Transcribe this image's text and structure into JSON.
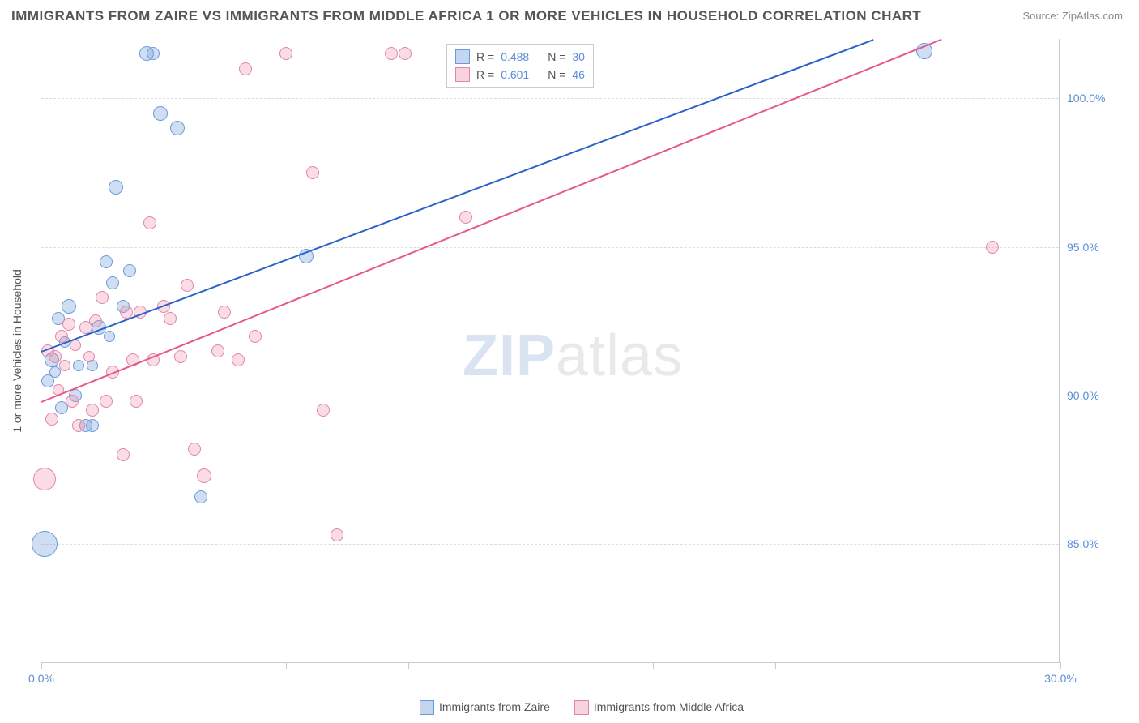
{
  "title": "IMMIGRANTS FROM ZAIRE VS IMMIGRANTS FROM MIDDLE AFRICA 1 OR MORE VEHICLES IN HOUSEHOLD CORRELATION CHART",
  "source": "Source: ZipAtlas.com",
  "ylabel": "1 or more Vehicles in Household",
  "watermark_zip": "ZIP",
  "watermark_atlas": "atlas",
  "chart": {
    "type": "scatter",
    "background_color": "#ffffff",
    "grid_color": "#dddddd",
    "axis_color": "#cccccc",
    "label_color": "#555555",
    "tick_color_x": "#5b8dd6",
    "tick_color_y": "#5b8dd6",
    "xlim": [
      0,
      30
    ],
    "ylim": [
      81,
      102
    ],
    "xticks": [
      0,
      3.6,
      7.2,
      10.8,
      14.4,
      18,
      21.6,
      25.2,
      30
    ],
    "xtick_labels": {
      "0": "0.0%",
      "30": "30.0%"
    },
    "yticks": [
      85,
      90,
      95,
      100
    ],
    "ytick_labels": {
      "85": "85.0%",
      "90": "90.0%",
      "95": "95.0%",
      "100": "100.0%"
    },
    "label_fontsize": 14,
    "title_fontsize": 17
  },
  "series": [
    {
      "name": "Immigrants from Zaire",
      "fill_color": "rgba(120,160,220,0.35)",
      "stroke_color": "#6a9bd8",
      "line_color": "#2b62c8",
      "swatch_fill": "#c3d5ef",
      "swatch_border": "#6a9bd8",
      "R": "0.488",
      "N": "30",
      "regression": {
        "x1": 0,
        "y1": 91.5,
        "x2": 24.5,
        "y2": 102
      },
      "points": [
        {
          "x": 0.1,
          "y": 85.0,
          "r": 16
        },
        {
          "x": 0.2,
          "y": 90.5,
          "r": 8
        },
        {
          "x": 0.3,
          "y": 91.2,
          "r": 9
        },
        {
          "x": 0.4,
          "y": 90.8,
          "r": 7
        },
        {
          "x": 0.5,
          "y": 92.6,
          "r": 8
        },
        {
          "x": 0.6,
          "y": 89.6,
          "r": 8
        },
        {
          "x": 0.7,
          "y": 91.8,
          "r": 7
        },
        {
          "x": 0.8,
          "y": 93.0,
          "r": 9
        },
        {
          "x": 1.0,
          "y": 90.0,
          "r": 8
        },
        {
          "x": 1.1,
          "y": 91.0,
          "r": 7
        },
        {
          "x": 1.3,
          "y": 89.0,
          "r": 8
        },
        {
          "x": 1.5,
          "y": 91.0,
          "r": 7
        },
        {
          "x": 1.5,
          "y": 89.0,
          "r": 8
        },
        {
          "x": 1.7,
          "y": 92.3,
          "r": 9
        },
        {
          "x": 1.9,
          "y": 94.5,
          "r": 8
        },
        {
          "x": 2.0,
          "y": 92.0,
          "r": 7
        },
        {
          "x": 2.1,
          "y": 93.8,
          "r": 8
        },
        {
          "x": 2.2,
          "y": 97.0,
          "r": 9
        },
        {
          "x": 2.4,
          "y": 93.0,
          "r": 8
        },
        {
          "x": 2.6,
          "y": 94.2,
          "r": 8
        },
        {
          "x": 3.1,
          "y": 101.5,
          "r": 9
        },
        {
          "x": 3.3,
          "y": 101.5,
          "r": 8
        },
        {
          "x": 3.5,
          "y": 99.5,
          "r": 9
        },
        {
          "x": 4.0,
          "y": 99.0,
          "r": 9
        },
        {
          "x": 4.7,
          "y": 86.6,
          "r": 8
        },
        {
          "x": 7.8,
          "y": 94.7,
          "r": 9
        },
        {
          "x": 26.0,
          "y": 101.6,
          "r": 10
        }
      ]
    },
    {
      "name": "Immigrants from Middle Africa",
      "fill_color": "rgba(235,140,170,0.30)",
      "stroke_color": "#e385a6",
      "line_color": "#e55a8a",
      "swatch_fill": "#f6d3df",
      "swatch_border": "#e385a6",
      "R": "0.601",
      "N": "46",
      "regression": {
        "x1": 0,
        "y1": 89.8,
        "x2": 26.5,
        "y2": 102
      },
      "points": [
        {
          "x": 0.1,
          "y": 87.2,
          "r": 14
        },
        {
          "x": 0.2,
          "y": 91.5,
          "r": 8
        },
        {
          "x": 0.3,
          "y": 89.2,
          "r": 8
        },
        {
          "x": 0.4,
          "y": 91.3,
          "r": 8
        },
        {
          "x": 0.5,
          "y": 90.2,
          "r": 7
        },
        {
          "x": 0.6,
          "y": 92.0,
          "r": 8
        },
        {
          "x": 0.7,
          "y": 91.0,
          "r": 7
        },
        {
          "x": 0.8,
          "y": 92.4,
          "r": 8
        },
        {
          "x": 0.9,
          "y": 89.8,
          "r": 8
        },
        {
          "x": 1.0,
          "y": 91.7,
          "r": 7
        },
        {
          "x": 1.1,
          "y": 89.0,
          "r": 8
        },
        {
          "x": 1.3,
          "y": 92.3,
          "r": 8
        },
        {
          "x": 1.4,
          "y": 91.3,
          "r": 7
        },
        {
          "x": 1.5,
          "y": 89.5,
          "r": 8
        },
        {
          "x": 1.6,
          "y": 92.5,
          "r": 8
        },
        {
          "x": 1.8,
          "y": 93.3,
          "r": 8
        },
        {
          "x": 1.9,
          "y": 89.8,
          "r": 8
        },
        {
          "x": 2.1,
          "y": 90.8,
          "r": 8
        },
        {
          "x": 2.4,
          "y": 88.0,
          "r": 8
        },
        {
          "x": 2.5,
          "y": 92.8,
          "r": 8
        },
        {
          "x": 2.7,
          "y": 91.2,
          "r": 8
        },
        {
          "x": 2.8,
          "y": 89.8,
          "r": 8
        },
        {
          "x": 2.9,
          "y": 92.8,
          "r": 8
        },
        {
          "x": 3.2,
          "y": 95.8,
          "r": 8
        },
        {
          "x": 3.3,
          "y": 91.2,
          "r": 8
        },
        {
          "x": 3.6,
          "y": 93.0,
          "r": 8
        },
        {
          "x": 3.8,
          "y": 92.6,
          "r": 8
        },
        {
          "x": 4.1,
          "y": 91.3,
          "r": 8
        },
        {
          "x": 4.3,
          "y": 93.7,
          "r": 8
        },
        {
          "x": 4.5,
          "y": 88.2,
          "r": 8
        },
        {
          "x": 4.8,
          "y": 87.3,
          "r": 9
        },
        {
          "x": 5.2,
          "y": 91.5,
          "r": 8
        },
        {
          "x": 5.4,
          "y": 92.8,
          "r": 8
        },
        {
          "x": 5.8,
          "y": 91.2,
          "r": 8
        },
        {
          "x": 6.0,
          "y": 101.0,
          "r": 8
        },
        {
          "x": 6.3,
          "y": 92.0,
          "r": 8
        },
        {
          "x": 7.2,
          "y": 101.5,
          "r": 8
        },
        {
          "x": 8.0,
          "y": 97.5,
          "r": 8
        },
        {
          "x": 8.3,
          "y": 89.5,
          "r": 8
        },
        {
          "x": 8.7,
          "y": 85.3,
          "r": 8
        },
        {
          "x": 10.3,
          "y": 101.5,
          "r": 8
        },
        {
          "x": 10.7,
          "y": 101.5,
          "r": 8
        },
        {
          "x": 12.5,
          "y": 96.0,
          "r": 8
        },
        {
          "x": 28.0,
          "y": 95.0,
          "r": 8
        }
      ]
    }
  ],
  "legend_top": {
    "R_label": "R =",
    "N_label": "N ="
  },
  "legend_bottom": {
    "items": [
      "Immigrants from Zaire",
      "Immigrants from Middle Africa"
    ]
  },
  "watermark_colors": {
    "zip": "#d9e3f2",
    "atlas": "#e9e9e9"
  }
}
